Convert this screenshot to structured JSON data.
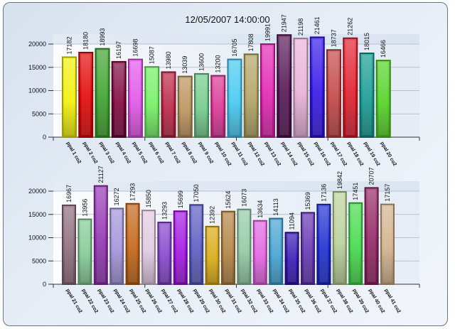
{
  "title": "12/05/2007 14:00:00",
  "chart_data": [
    {
      "type": "bar",
      "title": "12/05/2007 14:00:00",
      "xlabel": "",
      "ylabel": "",
      "ylim": [
        0,
        22000
      ],
      "yticks": [
        0,
        5000,
        10000,
        15000,
        20000
      ],
      "ytick_labels": [
        "0",
        "5000",
        "10000",
        "15000",
        "20000"
      ],
      "grid": true,
      "categories": [
        "ppal 1 co2",
        "ppal 2 co2",
        "ppal 3 co2",
        "ppal 4 co2",
        "ppal 5 co2",
        "ppal 6 co2",
        "ppal 7 co2",
        "ppal 8 co2",
        "ppal 9 co2",
        "ppal 10 co2",
        "ppal 11 co2",
        "ppal 12 co2",
        "ppal 13 co2",
        "ppal 14 co2",
        "ppal 15 co2",
        "ppal 16 co2",
        "ppal 17 co2",
        "ppal 18 co2",
        "ppal 19 co2",
        "ppal 20 co2"
      ],
      "values": [
        17182,
        18180,
        18993,
        16197,
        16698,
        15087,
        13980,
        13039,
        13600,
        13200,
        16705,
        17808,
        19991,
        21947,
        21198,
        21461,
        18737,
        21262,
        18015,
        16466
      ],
      "value_labels": [
        "17182",
        "18180",
        "18993",
        "16197",
        "16698",
        "15087",
        "13980",
        "13039",
        "13600",
        "13200",
        "16705",
        "17808",
        "19991",
        "21947",
        "21198",
        "21461",
        "18737",
        "21262",
        "18015",
        "16466"
      ],
      "colors": [
        "#f2f000",
        "#e00000",
        "#38a028",
        "#7a0038",
        "#e050e8",
        "#70ee60",
        "#b82040",
        "#b89058",
        "#70c888",
        "#d83090",
        "#40c8f0",
        "#b0a060",
        "#e020b0",
        "#501050",
        "#e8b0d8",
        "#3010e8",
        "#c04040",
        "#e01828",
        "#109890",
        "#50d020"
      ]
    },
    {
      "type": "bar",
      "title": "",
      "xlabel": "",
      "ylabel": "",
      "ylim": [
        0,
        22000
      ],
      "yticks": [
        0,
        5000,
        10000,
        15000,
        20000
      ],
      "ytick_labels": [
        "0",
        "5000",
        "10000",
        "15000",
        "20000"
      ],
      "grid": true,
      "categories": [
        "ppal 21 co2",
        "ppal 22 co2",
        "ppal 23 co2",
        "ppal 24 co2",
        "ppal 25 co2",
        "ppal 26 co2",
        "ppal 27 co2",
        "ppal 28 co2",
        "ppal 29 co2",
        "ppal 30 co2",
        "ppal 31 co2",
        "ppal 32 co2",
        "ppal 33 co2",
        "ppal 34 co2",
        "ppal 35 co2",
        "ppal 36 co2",
        "ppal 37 co2",
        "ppal 38 co2",
        "ppal 39 co2",
        "ppal 40 co2",
        "ppal 41 co2"
      ],
      "values": [
        16967,
        13956,
        21127,
        16272,
        17293,
        15850,
        13293,
        15699,
        17050,
        12392,
        15624,
        16073,
        13634,
        14113,
        11094,
        15369,
        17136,
        19842,
        17451,
        20707,
        17157
      ],
      "value_labels": [
        "16967",
        "13956",
        "21127",
        "16272",
        "17293",
        "15850",
        "13293",
        "15699",
        "17050",
        "12392",
        "15624",
        "16073",
        "13634",
        "14113",
        "11094",
        "15369",
        "17136",
        "19842",
        "17451",
        "20707",
        "17157"
      ],
      "colors": [
        "#8a6878",
        "#80c890",
        "#9030b0",
        "#a090d8",
        "#c06010",
        "#e0c8e0",
        "#8040c8",
        "#a010e0",
        "#5858c0",
        "#d8a810",
        "#b08040",
        "#90c8a0",
        "#e060e0",
        "#40a0d0",
        "#3010b0",
        "#6030b0",
        "#1828d0",
        "#b8d098",
        "#40d848",
        "#902060",
        "#d0b088"
      ]
    }
  ]
}
